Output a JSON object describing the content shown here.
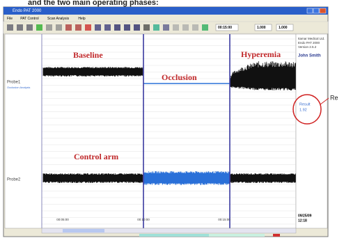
{
  "caption": "and the two main operating phases:",
  "window": {
    "title": "Endo PAT 2000",
    "menu": [
      "File",
      "PAT Control",
      "Scan Analysis",
      "Help"
    ],
    "toolbar": {
      "time_select": "00:15:00",
      "scale1": "1.000",
      "scale2": "1.000"
    }
  },
  "plot": {
    "phases": [
      "Baseline",
      "Occlusion",
      "Hyperemia"
    ],
    "control_label": "Control arm",
    "probe1": "Probe1",
    "probe1_note": "Occlusion Analysis",
    "probe2": "Probe2",
    "time_labels": [
      "00:05:00",
      "00:10:00",
      "00:15:00"
    ]
  },
  "side_panel": {
    "company": "Itamar Medical Ltd.",
    "product": "Endo PAT 2000",
    "version": "Version 2.5.2",
    "patient": "John Smith",
    "result_label": "Result",
    "result_value": "1.92",
    "date": "09/25/09",
    "time": "12:18"
  },
  "callout": "Re"
}
